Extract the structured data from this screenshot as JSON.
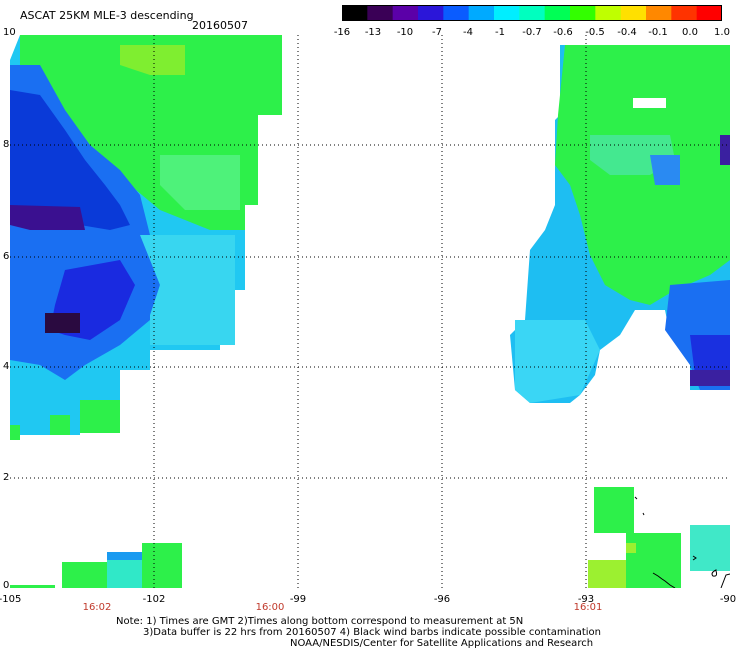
{
  "header": {
    "title": "ASCAT 25KM MLE-3 descending",
    "date": "20160507"
  },
  "colorbar": {
    "labels": [
      "-16",
      "-13",
      "-10",
      "-7",
      "-4",
      "-1",
      "-0.7",
      "-0.6",
      "-0.5",
      "-0.4",
      "-0.1",
      "0.0",
      "1.0"
    ],
    "colors": [
      "#000000",
      "#3a0056",
      "#5b00a8",
      "#2b16d9",
      "#0a5cff",
      "#00aaff",
      "#00eeff",
      "#00ffbf",
      "#00ff55",
      "#33ff00",
      "#bfff00",
      "#ffe000",
      "#ff8800",
      "#ff3300",
      "#ff0000"
    ]
  },
  "axes": {
    "y_labels": [
      "10",
      "8",
      "6",
      "4",
      "2",
      "0"
    ],
    "x_labels": [
      "-105",
      "-102",
      "-99",
      "-96",
      "-93",
      "-90"
    ],
    "time_labels": [
      "16:02",
      "16:00",
      "16:01"
    ]
  },
  "notes": {
    "line1": "Note: 1) Times are GMT 2)Times along bottom correspond to measurement at 5N",
    "line2": "3)Data buffer is 22 hrs from 20160507 4) Black wind barbs indicate possible contamination",
    "line3": "NOAA/NESDIS/Center for Satellite Applications and Research"
  }
}
